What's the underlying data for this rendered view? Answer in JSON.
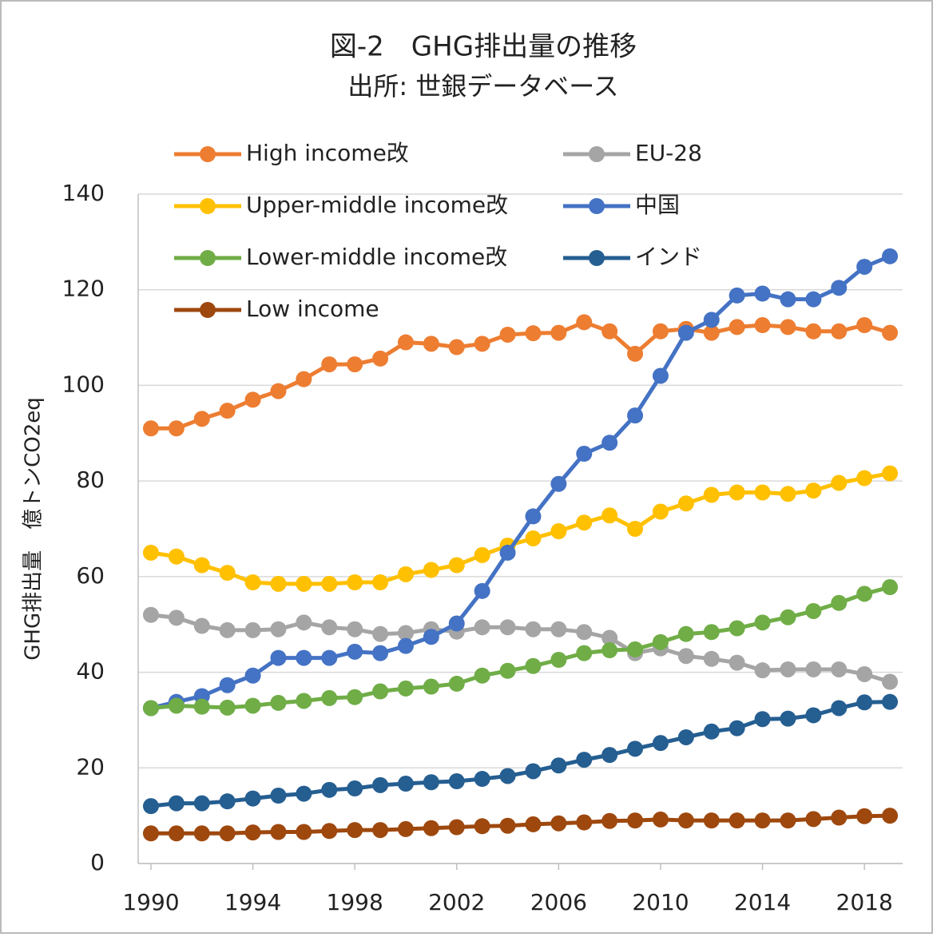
{
  "chart_data": {
    "type": "line",
    "title": "図-2　GHG排出量の推移",
    "subtitle": "出所: 世銀データベース",
    "y_label": "GHG排出量　億トンCO2eq",
    "x": [
      1990,
      1991,
      1992,
      1993,
      1994,
      1995,
      1996,
      1997,
      1998,
      1999,
      2000,
      2001,
      2002,
      2003,
      2004,
      2005,
      2006,
      2007,
      2008,
      2009,
      2010,
      2011,
      2012,
      2013,
      2014,
      2015,
      2016,
      2017,
      2018,
      2019
    ],
    "series": [
      {
        "name": "High income改",
        "color": "#ed7d31",
        "values": [
          91,
          91,
          93,
          94.7,
          97,
          98.8,
          101.3,
          104.4,
          104.4,
          105.6,
          109,
          108.7,
          108,
          108.7,
          110.6,
          110.9,
          111,
          113.2,
          111.3,
          106.6,
          111.3,
          111.8,
          111,
          112.2,
          112.6,
          112.2,
          111.3,
          111.3,
          112.6,
          111
        ]
      },
      {
        "name": "EU-28",
        "color": "#a5a5a5",
        "values": [
          52,
          51.4,
          49.7,
          48.8,
          48.8,
          49,
          50.4,
          49.4,
          49,
          48,
          48.2,
          49,
          48.5,
          49.4,
          49.4,
          49,
          49,
          48.4,
          47.2,
          44,
          45,
          43.4,
          42.8,
          42,
          40.4,
          40.6,
          40.6,
          40.6,
          39.6,
          38
        ]
      },
      {
        "name": "Upper-middle income改",
        "color": "#ffc000",
        "values": [
          65,
          64.2,
          62.4,
          60.8,
          58.8,
          58.5,
          58.5,
          58.5,
          58.8,
          58.8,
          60.5,
          61.4,
          62.4,
          64.5,
          66.5,
          68,
          69.5,
          71.3,
          72.8,
          70,
          73.6,
          75.3,
          77.1,
          77.6,
          77.6,
          77.3,
          78,
          79.6,
          80.6,
          81.6
        ]
      },
      {
        "name": "中国",
        "color": "#4472c4",
        "values": [
          32.5,
          33.8,
          35,
          37.3,
          39.3,
          43,
          43,
          43,
          44.3,
          44,
          45.5,
          47.4,
          50.2,
          57,
          65,
          72.6,
          79.4,
          85.7,
          88,
          93.7,
          102,
          111,
          113.7,
          118.8,
          119.2,
          118,
          118,
          120.4,
          124.8,
          127
        ]
      },
      {
        "name": "Lower-middle income改",
        "color": "#70ad47",
        "values": [
          32.5,
          33,
          32.8,
          32.6,
          33,
          33.6,
          34,
          34.6,
          34.8,
          36,
          36.6,
          37,
          37.6,
          39.3,
          40.3,
          41.3,
          42.6,
          44,
          44.6,
          44.8,
          46.3,
          48,
          48.4,
          49.2,
          50.4,
          51.5,
          52.8,
          54.5,
          56.4,
          57.8
        ]
      },
      {
        "name": "インド",
        "color": "#255e91",
        "values": [
          12,
          12.6,
          12.6,
          13,
          13.6,
          14.2,
          14.6,
          15.4,
          15.7,
          16.4,
          16.7,
          17,
          17.2,
          17.7,
          18.3,
          19.3,
          20.5,
          21.7,
          22.7,
          24,
          25.2,
          26.4,
          27.6,
          28.3,
          30.2,
          30.3,
          31,
          32.5,
          33.7,
          33.8
        ]
      },
      {
        "name": "Low income",
        "color": "#9e480e",
        "values": [
          6.3,
          6.3,
          6.3,
          6.3,
          6.5,
          6.6,
          6.6,
          6.8,
          7,
          7,
          7.2,
          7.4,
          7.6,
          7.8,
          7.9,
          8.2,
          8.4,
          8.6,
          8.9,
          9,
          9.2,
          9,
          9,
          9,
          9,
          9,
          9.3,
          9.6,
          9.9,
          10
        ]
      }
    ],
    "xlim": [
      1989.5,
      2019.5
    ],
    "xticks": [
      1990,
      1994,
      1998,
      2002,
      2006,
      2010,
      2014,
      2018
    ],
    "ylim": [
      0,
      140
    ],
    "yticks": [
      0,
      20,
      40,
      60,
      80,
      100,
      120,
      140
    ],
    "grid": true
  }
}
